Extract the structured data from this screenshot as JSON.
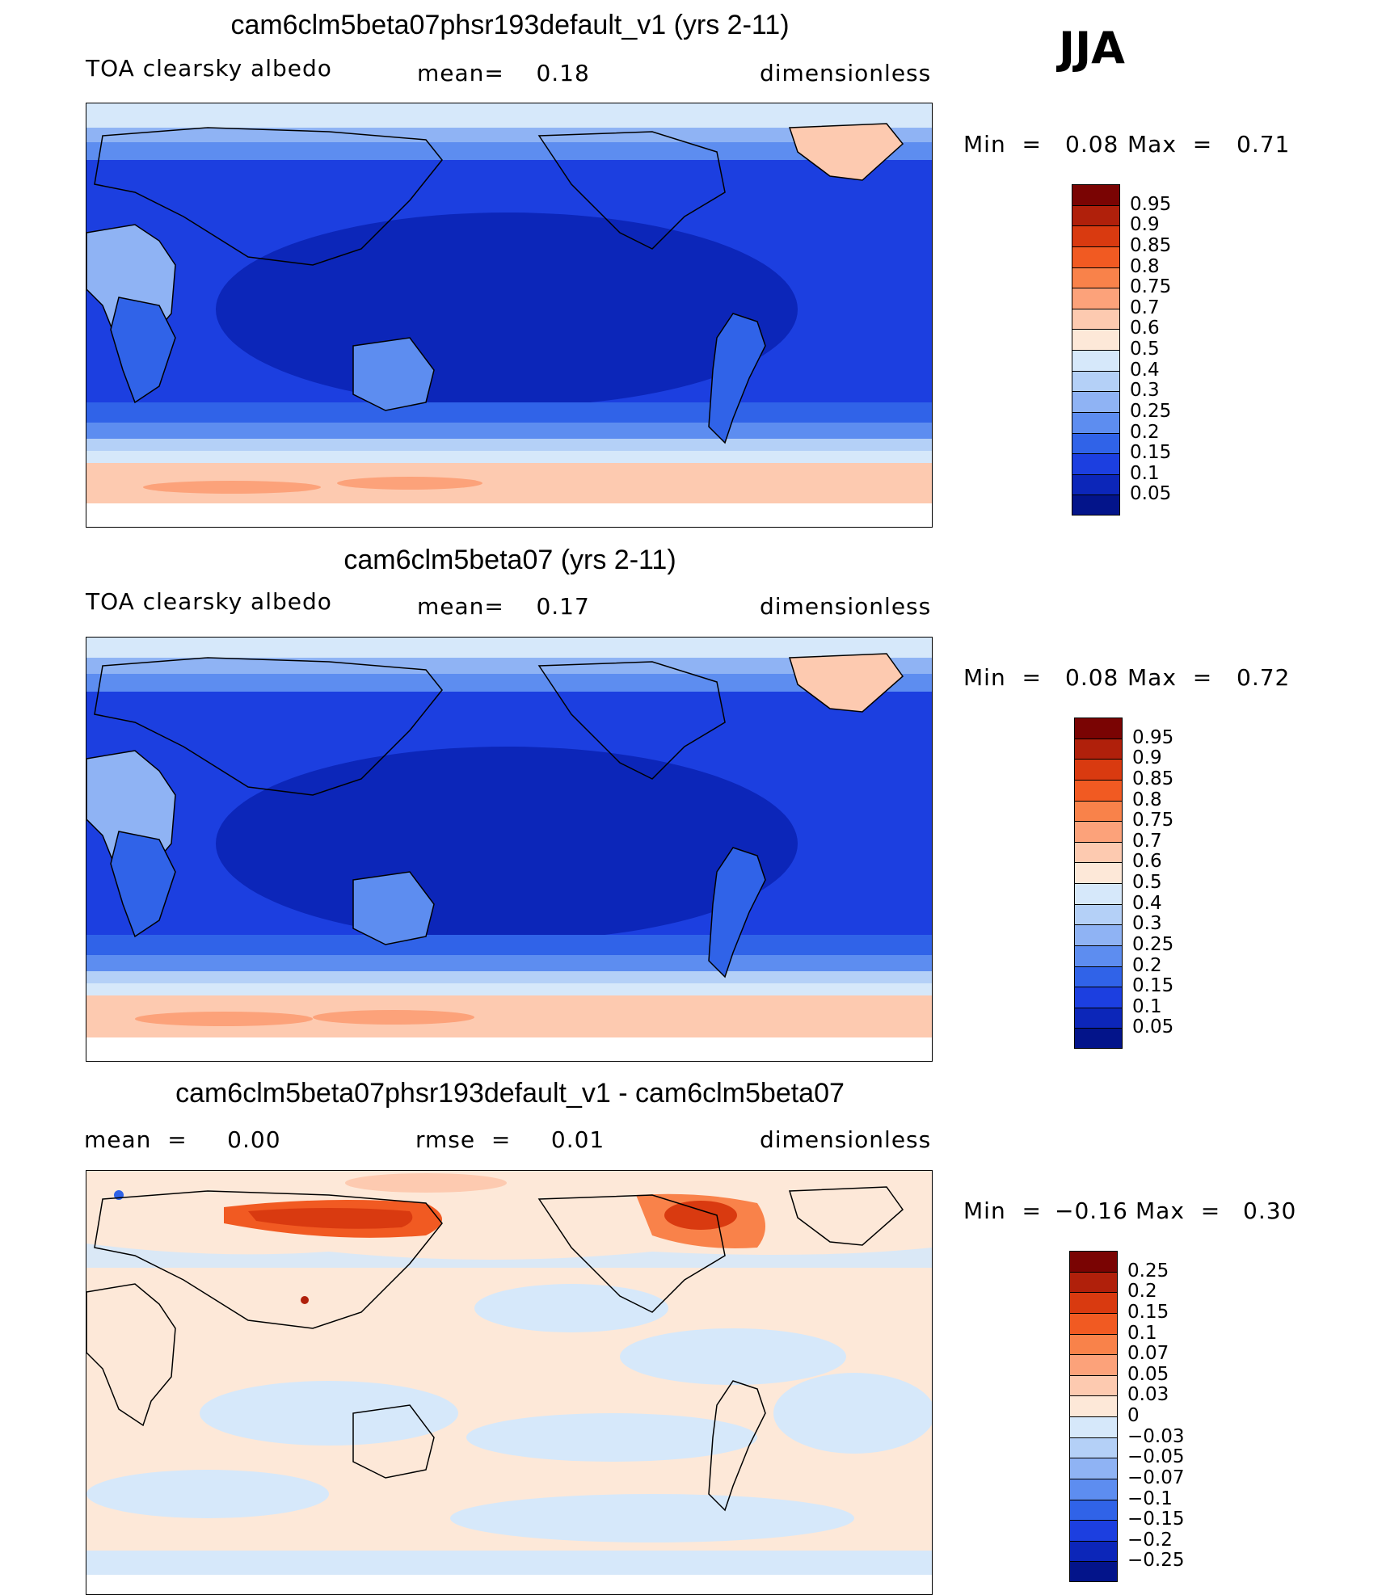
{
  "season": "JJA",
  "panels": [
    {
      "title": "cam6clm5beta07phsr193default_v1 (yrs 2-11)",
      "left_label": "TOA clearsky albedo",
      "mid_label": "mean=    0.18",
      "right_label": "dimensionless",
      "min_label": "Min  =",
      "min_value": "0.08",
      "max_label": "Max  =",
      "max_value": "0.71",
      "kind": "abs"
    },
    {
      "title": "cam6clm5beta07 (yrs 2-11)",
      "left_label": "TOA clearsky albedo",
      "mid_label": "mean=    0.17",
      "right_label": "dimensionless",
      "min_label": "Min  =",
      "min_value": "0.08",
      "max_label": "Max  =",
      "max_value": "0.72",
      "kind": "abs"
    },
    {
      "title": "cam6clm5beta07phsr193default_v1 - cam6clm5beta07",
      "left_label": "mean  =     0.00",
      "mid_label": "rmse  =     0.01",
      "right_label": "dimensionless",
      "min_label": "Min  =",
      "min_value": "−0.16",
      "max_label": "Max  =",
      "max_value": "0.30",
      "kind": "diff"
    }
  ],
  "colorbars": {
    "abs": {
      "labels": [
        "0.95",
        "0.9",
        "0.85",
        "0.8",
        "0.75",
        "0.7",
        "0.6",
        "0.5",
        "0.4",
        "0.3",
        "0.25",
        "0.2",
        "0.15",
        "0.1",
        "0.05"
      ],
      "colors": [
        "#7a0403",
        "#b0200b",
        "#d93a10",
        "#f15a22",
        "#f9824a",
        "#fca27a",
        "#fdcab0",
        "#fde8d8",
        "#d6e8fa",
        "#b4d0f7",
        "#8fb3f4",
        "#5d8df0",
        "#3063e8",
        "#1c3fe0",
        "#0c26b9",
        "#03148a"
      ]
    },
    "diff": {
      "labels": [
        "0.25",
        "0.2",
        "0.15",
        "0.1",
        "0.07",
        "0.05",
        "0.03",
        "0",
        "−0.03",
        "−0.05",
        "−0.07",
        "−0.1",
        "−0.15",
        "−0.2",
        "−0.25"
      ],
      "colors": [
        "#7a0403",
        "#b0200b",
        "#d93a10",
        "#f15a22",
        "#f9824a",
        "#fca27a",
        "#fdcab0",
        "#fde8d8",
        "#d6e8fa",
        "#b4d0f7",
        "#8fb3f4",
        "#5d8df0",
        "#3063e8",
        "#1c3fe0",
        "#0c26b9",
        "#03148a"
      ]
    }
  }
}
